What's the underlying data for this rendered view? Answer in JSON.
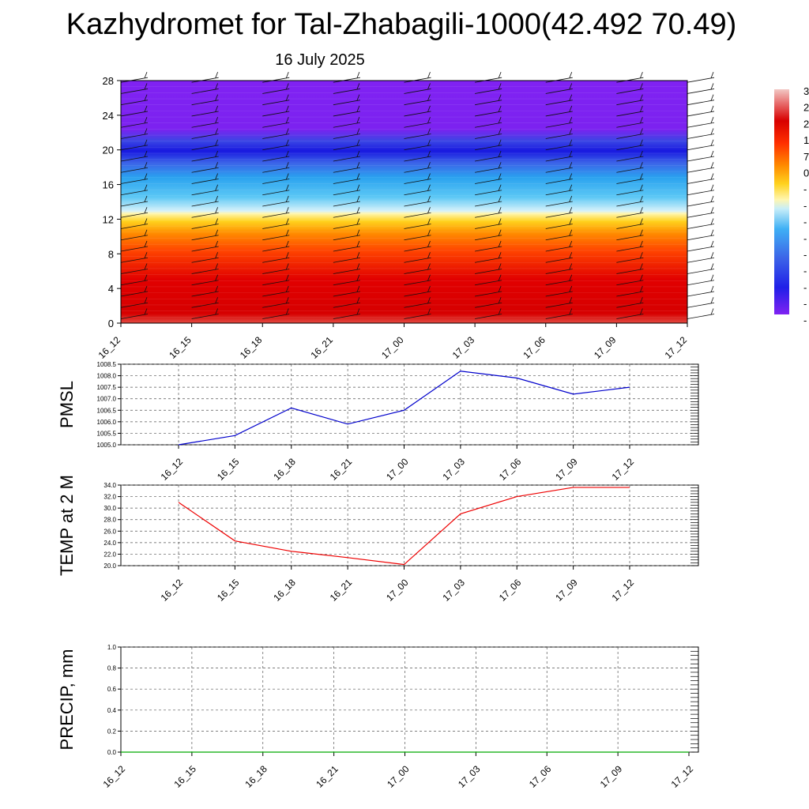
{
  "title": "Kazhydromet for Tal-Zhabagili-1000(42.492 70.49)",
  "date": "16 July 2025",
  "chart_data": [
    {
      "type": "heatmap",
      "name": "cross-section",
      "categories": [
        "16_12",
        "16_15",
        "16_18",
        "16_21",
        "17_00",
        "17_03",
        "17_06",
        "17_09",
        "17_12"
      ],
      "ylim": [
        0,
        28
      ],
      "yticks": [
        "0",
        "4",
        "8",
        "12",
        "16",
        "20",
        "24",
        "28"
      ],
      "colorbar_ticks": [
        "3",
        "2",
        "2",
        "1",
        "7",
        "0",
        "-",
        "-",
        "-",
        "-",
        "-",
        "-",
        "-",
        "-",
        "-"
      ],
      "colors": [
        "#7f22f2",
        "#1414e6",
        "#3d7af0",
        "#3fb8f5",
        "#c8eef8",
        "#fff8c0",
        "#ffd21e",
        "#ff8c00",
        "#ff4100",
        "#e00000",
        "#d80000",
        "#e8706a",
        "#f2c8c4"
      ]
    },
    {
      "type": "line",
      "ylabel": "PMSL",
      "categories": [
        "16_12",
        "16_15",
        "16_18",
        "16_21",
        "17_00",
        "17_03",
        "17_06",
        "17_09",
        "17_12"
      ],
      "values": [
        1005.0,
        1005.4,
        1006.6,
        1005.9,
        1006.5,
        1008.2,
        1007.9,
        1007.2,
        1007.5
      ],
      "ylim": [
        1005.0,
        1008.5
      ],
      "yticks": [
        "1005.0",
        "1005.5",
        "1006.0",
        "1006.5",
        "1007.0",
        "1007.5",
        "1008.0",
        "1008.5"
      ],
      "color": "#0000cc",
      "grid": true
    },
    {
      "type": "line",
      "ylabel": "TEMP at 2 M",
      "categories": [
        "16_12",
        "16_15",
        "16_18",
        "16_21",
        "17_00",
        "17_03",
        "17_06",
        "17_09",
        "17_12"
      ],
      "values": [
        31.0,
        24.3,
        22.5,
        21.4,
        20.2,
        29.0,
        32.0,
        33.6,
        33.6
      ],
      "ylim": [
        20.0,
        34.0
      ],
      "yticks": [
        "20.0",
        "22.0",
        "24.0",
        "26.0",
        "28.0",
        "30.0",
        "32.0",
        "34.0"
      ],
      "color": "#ee0000",
      "grid": true
    },
    {
      "type": "line",
      "ylabel": "PRECIP, mm",
      "categories": [
        "16_12",
        "16_15",
        "16_18",
        "16_21",
        "17_00",
        "17_03",
        "17_06",
        "17_09",
        "17_12"
      ],
      "values": [
        0,
        0,
        0,
        0,
        0,
        0,
        0,
        0,
        0
      ],
      "ylim": [
        0,
        1.0
      ],
      "yticks": [
        "0.0",
        "0.2",
        "0.4",
        "0.6",
        "0.8",
        "1.0"
      ],
      "color": "#00aa00",
      "grid": true
    }
  ]
}
